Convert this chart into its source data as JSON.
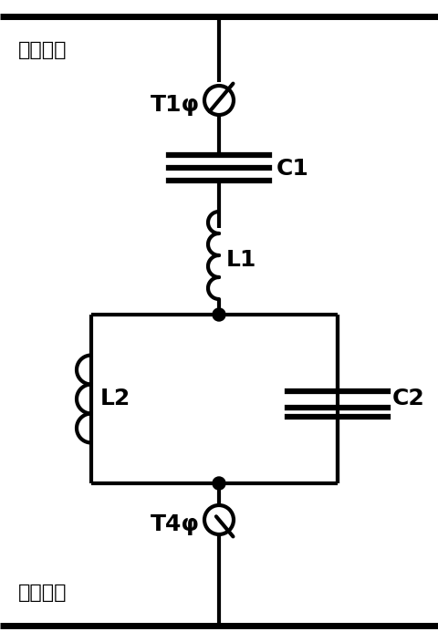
{
  "background_color": "#ffffff",
  "line_color": "#000000",
  "line_width": 3.0,
  "fig_width": 4.8,
  "fig_height": 7.04,
  "dpi": 100,
  "labels": {
    "high_bus": "高压母线",
    "neutral_bus": "中性母线",
    "C1": "C1",
    "C2": "C2",
    "L1": "L1",
    "L2": "L2",
    "T1": "T1φ",
    "T4": "T4φ"
  },
  "font_size": 16,
  "label_font_size": 16,
  "component_font_size": 18
}
